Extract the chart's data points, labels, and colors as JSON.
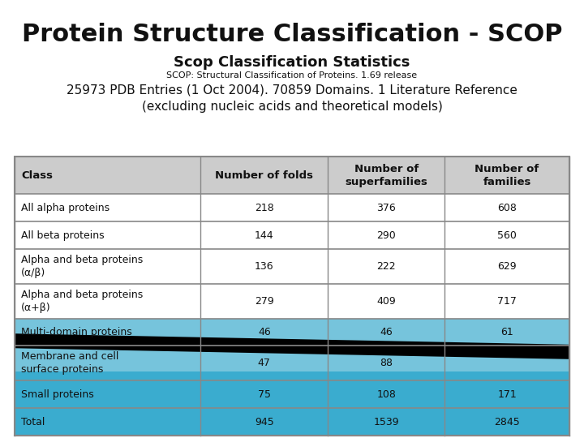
{
  "title": "Protein Structure Classification - SCOP",
  "subtitle": "Scop Classification Statistics",
  "subtitle2": "SCOP: Structural Classification of Proteins. 1.69 release",
  "description": "25973 PDB Entries (1 Oct 2004). 70859 Domains. 1 Literature Reference\n(excluding nucleic acids and theoretical models)",
  "columns": [
    "Class",
    "Number of folds",
    "Number of\nsuperfamilies",
    "Number of\nfamilies"
  ],
  "rows": [
    [
      "All alpha proteins",
      "218",
      "376",
      "608"
    ],
    [
      "All beta proteins",
      "144",
      "290",
      "560"
    ],
    [
      "Alpha and beta proteins\n(α/β)",
      "136",
      "222",
      "629"
    ],
    [
      "Alpha and beta proteins\n(α+β)",
      "279",
      "409",
      "717"
    ],
    [
      "Multi-domain proteins",
      "46",
      "46",
      "61"
    ],
    [
      "Membrane and cell\nsurface proteins",
      "47",
      "88",
      ""
    ],
    [
      "Small proteins",
      "75",
      "108",
      "171"
    ],
    [
      "Total",
      "945",
      "1539",
      "2845"
    ]
  ],
  "bg_color": "#ffffff",
  "table_border": "#888888",
  "header_bg": "#cccccc",
  "white_row": "#ffffff",
  "light_gray_row": "#eeeeee",
  "teal_color": "#3aaccf",
  "teal_light_color": "#a8d8e8",
  "black_band_color": "#000000",
  "text_dark": "#111111",
  "col_splits": [
    0.0,
    0.335,
    0.565,
    0.775,
    1.0
  ]
}
